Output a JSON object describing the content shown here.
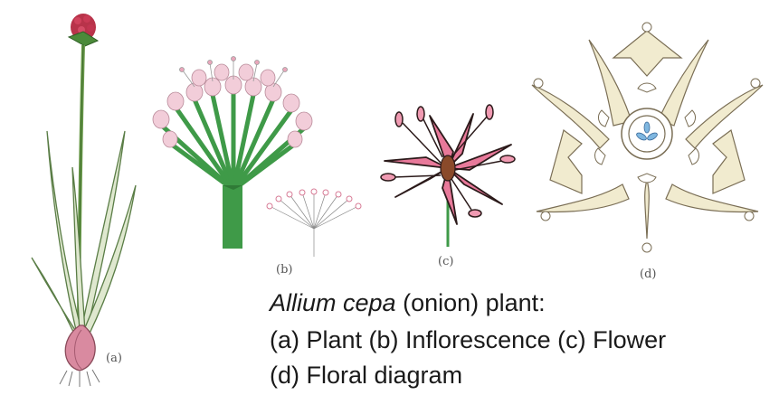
{
  "panels": {
    "a": {
      "label": "(a)",
      "name": "Plant"
    },
    "b": {
      "label": "(b)",
      "name": "Inflorescence"
    },
    "c": {
      "label": "(c)",
      "name": "Flower"
    },
    "d": {
      "label": "(d)",
      "name": "Floral diagram"
    }
  },
  "caption": {
    "species": "Allium cepa",
    "common": "(onion) plant:",
    "line2": "(a) Plant (b) Inflorescence (c) Flower",
    "line3": "(d) Floral diagram"
  },
  "colors": {
    "stem": "#3f9a48",
    "petal_pink": "#e8799a",
    "bud_pink": "#f2cdd9",
    "diagram_fill": "#f1ebcf",
    "diagram_line": "#7a6e55",
    "bulb": "#d98aa0",
    "stigma_blue": "#7fb7e0"
  }
}
